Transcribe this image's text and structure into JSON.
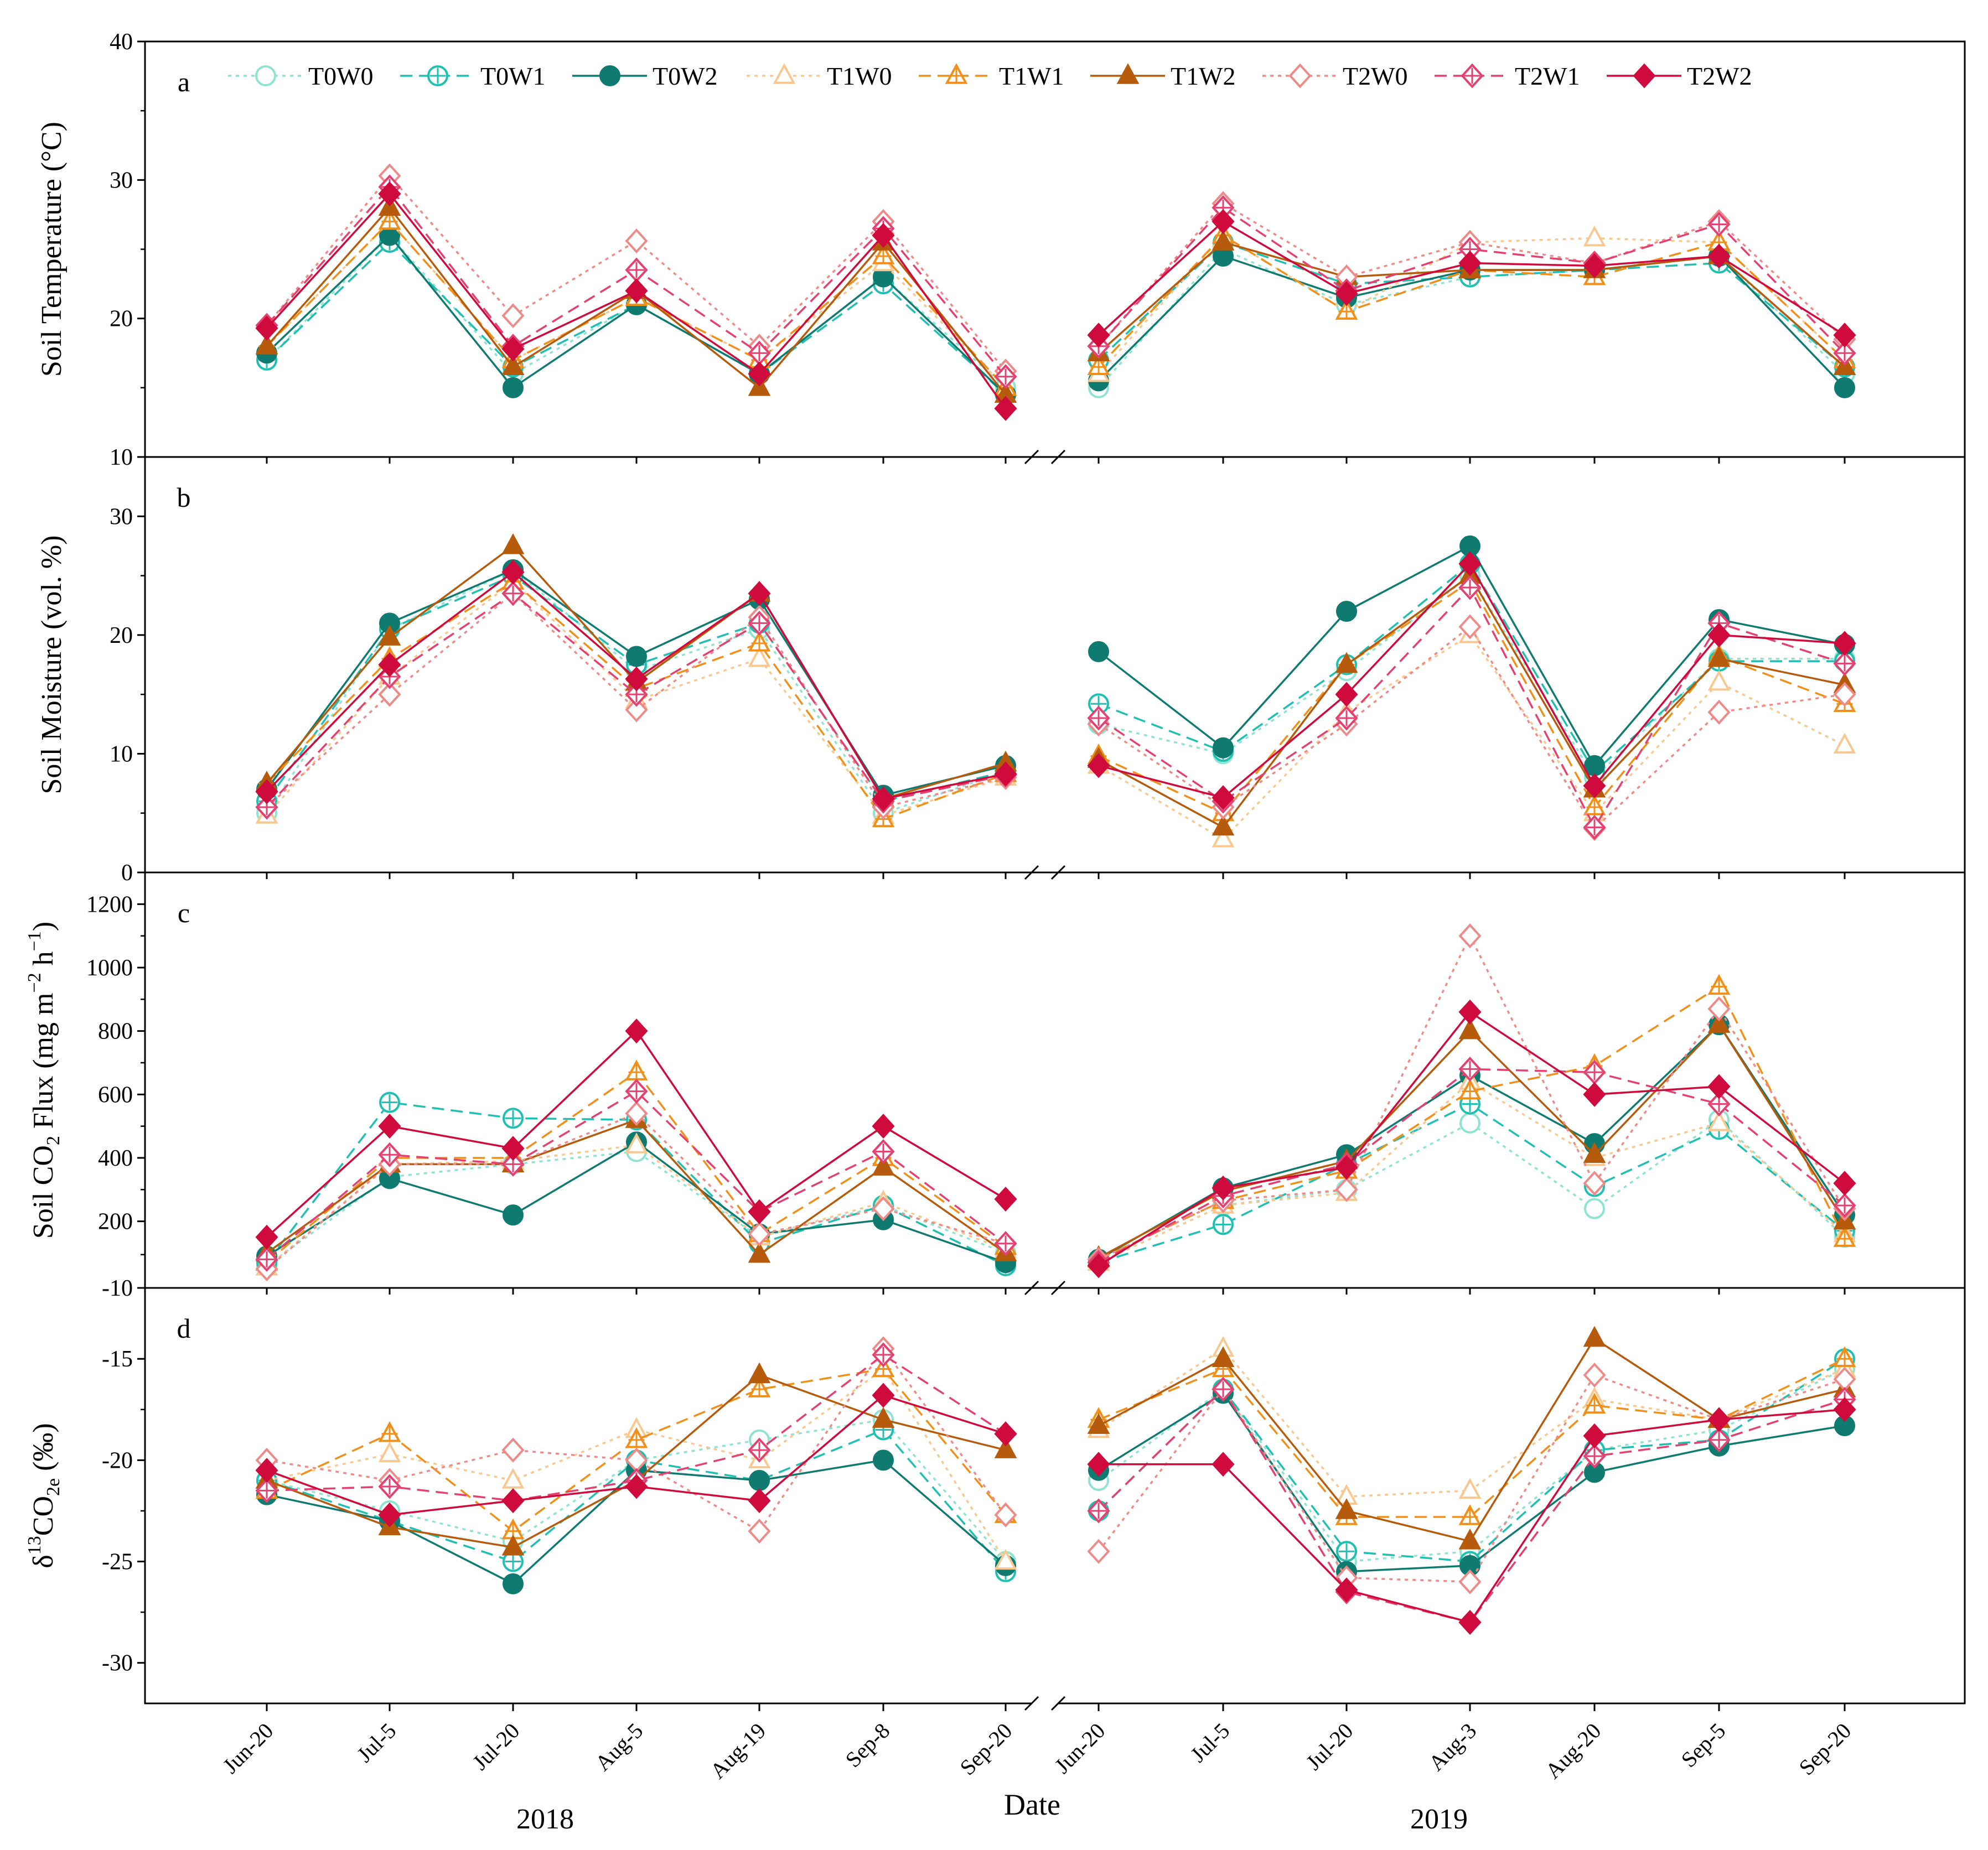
{
  "figure": {
    "xlabel": "Date",
    "year_labels": [
      "2018",
      "2019"
    ]
  },
  "chart_data": {
    "type": "line",
    "categories": [
      "Jun-20",
      "Jul-5",
      "Jul-20",
      "Aug-5",
      "Aug-19",
      "Sep-8",
      "Sep-20",
      "Jun-20",
      "Jul-5",
      "Jul-20",
      "Aug-3",
      "Aug-20",
      "Sep-5",
      "Sep-20"
    ],
    "legend_position": "top",
    "series_styles": [
      {
        "name": "T0W0",
        "color": "#8ee3d2",
        "marker": "circle-open",
        "dash": "dot"
      },
      {
        "name": "T0W1",
        "color": "#1fbfb2",
        "marker": "circle-plus",
        "dash": "dash"
      },
      {
        "name": "T0W2",
        "color": "#0e7a70",
        "marker": "circle-filled",
        "dash": "solid"
      },
      {
        "name": "T1W0",
        "color": "#f8c890",
        "marker": "triangle-open",
        "dash": "dot"
      },
      {
        "name": "T1W1",
        "color": "#f0901a",
        "marker": "triangle-plus",
        "dash": "dash"
      },
      {
        "name": "T1W2",
        "color": "#b65a0c",
        "marker": "triangle-filled",
        "dash": "solid"
      },
      {
        "name": "T2W0",
        "color": "#ee8a88",
        "marker": "diamond-open",
        "dash": "dot"
      },
      {
        "name": "T2W1",
        "color": "#e44070",
        "marker": "diamond-plus",
        "dash": "dash"
      },
      {
        "name": "T2W2",
        "color": "#cf0a3c",
        "marker": "diamond-filled",
        "dash": "solid"
      }
    ],
    "panels": [
      {
        "panel_label": "a",
        "ylabel": "Soil Temperature (°C)",
        "ylim": [
          10,
          40
        ],
        "yticks": [
          "10",
          "20",
          "30",
          "40"
        ],
        "series": [
          {
            "name": "T0W0",
            "values": [
              17.0,
              26.0,
              16.0,
              21.0,
              16.0,
              23.0,
              15.0,
              15.0,
              25.0,
              21.0,
              23.0,
              23.5,
              24.5,
              16.0
            ]
          },
          {
            "name": "T0W1",
            "values": [
              17.0,
              25.5,
              16.5,
              21.0,
              16.0,
              22.5,
              14.5,
              17.0,
              25.5,
              22.5,
              23.0,
              23.5,
              24.0,
              16.5
            ]
          },
          {
            "name": "T0W2",
            "values": [
              17.5,
              26.0,
              15.0,
              21.0,
              16.0,
              23.0,
              14.5,
              15.5,
              24.5,
              21.5,
              23.5,
              23.5,
              24.5,
              15.0
            ]
          },
          {
            "name": "T1W0",
            "values": [
              18.0,
              27.0,
              17.0,
              21.5,
              17.0,
              24.0,
              15.0,
              16.0,
              26.0,
              20.5,
              25.5,
              25.8,
              25.5,
              17.0
            ]
          },
          {
            "name": "T1W1",
            "values": [
              18.0,
              27.0,
              17.0,
              21.5,
              17.0,
              24.5,
              15.0,
              16.5,
              26.0,
              20.5,
              23.5,
              23.0,
              25.5,
              17.0
            ]
          },
          {
            "name": "T1W2",
            "values": [
              18.0,
              28.0,
              16.5,
              22.0,
              15.0,
              25.5,
              14.5,
              17.5,
              25.5,
              23.0,
              23.5,
              23.5,
              24.5,
              16.5
            ]
          },
          {
            "name": "T2W0",
            "values": [
              19.5,
              30.3,
              20.2,
              25.6,
              18.0,
              27.0,
              16.2,
              18.0,
              28.3,
              23.0,
              25.5,
              24.0,
              27.0,
              18.5
            ]
          },
          {
            "name": "T2W1",
            "values": [
              19.5,
              29.5,
              18.0,
              23.5,
              17.5,
              26.5,
              15.8,
              18.0,
              28.0,
              22.0,
              25.0,
              24.0,
              26.8,
              17.5
            ]
          },
          {
            "name": "T2W2",
            "values": [
              19.3,
              29.0,
              17.8,
              22.0,
              16.0,
              26.0,
              13.5,
              18.8,
              27.0,
              21.8,
              24.0,
              23.8,
              24.5,
              18.8
            ]
          }
        ]
      },
      {
        "panel_label": "b",
        "ylabel": "Soil Moisture (vol. %)",
        "ylim": [
          0,
          35
        ],
        "yticks": [
          "0",
          "10",
          "20",
          "30"
        ],
        "series": [
          {
            "name": "T0W0",
            "values": [
              5.0,
              20.5,
              25.5,
              17.0,
              20.5,
              5.0,
              8.5,
              12.5,
              10.0,
              17.0,
              25.0,
              8.0,
              18.0,
              18.0
            ]
          },
          {
            "name": "T0W1",
            "values": [
              6.0,
              20.5,
              25.0,
              17.5,
              21.0,
              6.0,
              8.5,
              14.2,
              10.2,
              17.5,
              26.0,
              8.5,
              17.8,
              17.8
            ]
          },
          {
            "name": "T0W2",
            "values": [
              7.0,
              21.0,
              25.5,
              18.2,
              23.0,
              6.5,
              9.0,
              18.6,
              10.5,
              22.0,
              27.5,
              9.0,
              21.3,
              19.2
            ]
          },
          {
            "name": "T1W0",
            "values": [
              4.8,
              16.5,
              24.5,
              14.5,
              18.0,
              4.8,
              8.0,
              9.0,
              2.8,
              13.5,
              20.0,
              5.0,
              16.0,
              10.7
            ]
          },
          {
            "name": "T1W1",
            "values": [
              7.5,
              18.0,
              24.5,
              15.5,
              19.3,
              4.5,
              8.3,
              9.8,
              5.0,
              17.5,
              24.5,
              5.5,
              18.2,
              14.2
            ]
          },
          {
            "name": "T1W2",
            "values": [
              7.5,
              19.8,
              27.5,
              16.0,
              23.5,
              6.2,
              9.2,
              9.5,
              3.8,
              17.5,
              25.0,
              7.0,
              18.0,
              15.8
            ]
          },
          {
            "name": "T2W0",
            "values": [
              5.5,
              15.0,
              23.5,
              13.7,
              21.5,
              5.5,
              8.0,
              12.5,
              5.5,
              12.5,
              20.7,
              3.7,
              13.5,
              15.0
            ]
          },
          {
            "name": "T2W1",
            "values": [
              5.5,
              16.5,
              23.5,
              15.0,
              21.0,
              6.0,
              8.2,
              13.0,
              6.0,
              13.0,
              24.0,
              3.8,
              21.0,
              17.6
            ]
          },
          {
            "name": "T2W2",
            "values": [
              6.8,
              17.5,
              25.3,
              16.3,
              23.5,
              6.2,
              8.3,
              9.0,
              6.3,
              15.0,
              26.0,
              7.3,
              20.0,
              19.3
            ]
          }
        ]
      },
      {
        "panel_label": "c",
        "ylabel": "Soil CO2 Flux (mg m-2 h-1)",
        "ylim": [
          -10,
          1300
        ],
        "yticks": [
          "-10",
          "200",
          "400",
          "600",
          "800",
          "1000",
          "1200"
        ],
        "series": [
          {
            "name": "T0W0",
            "values": [
              60,
              340,
              380,
              420,
              150,
              250,
              100,
              70,
              250,
              300,
              510,
              240,
              520,
              150
            ]
          },
          {
            "name": "T0W1",
            "values": [
              70,
              575,
              525,
              520,
              130,
              250,
              60,
              70,
              190,
              380,
              570,
              310,
              490,
              170
            ]
          },
          {
            "name": "T0W2",
            "values": [
              90,
              335,
              220,
              450,
              160,
              205,
              70,
              80,
              305,
              410,
              660,
              445,
              820,
              220
            ]
          },
          {
            "name": "T1W0",
            "values": [
              55,
              380,
              390,
              440,
              150,
              260,
              110,
              70,
              250,
              290,
              640,
              400,
              510,
              160
            ]
          },
          {
            "name": "T1W1",
            "values": [
              70,
              400,
              400,
              670,
              160,
              400,
              120,
              80,
              265,
              360,
              610,
              690,
              940,
              145
            ]
          },
          {
            "name": "T1W2",
            "values": [
              100,
              380,
              380,
              520,
              95,
              370,
              100,
              85,
              295,
              390,
              800,
              410,
              820,
              200
            ]
          },
          {
            "name": "T2W0",
            "values": [
              50,
              380,
              380,
              540,
              160,
              240,
              130,
              80,
              265,
              300,
              1100,
              320,
              870,
              240
            ]
          },
          {
            "name": "T2W1",
            "values": [
              80,
              410,
              380,
              610,
              230,
              420,
              130,
              70,
              280,
              380,
              680,
              670,
              570,
              250
            ]
          },
          {
            "name": "T2W2",
            "values": [
              150,
              500,
              430,
              800,
              230,
              500,
              270,
              60,
              305,
              370,
              860,
              600,
              625,
              320
            ]
          }
        ]
      },
      {
        "panel_label": "d",
        "ylabel": "δ13CO2e (‰)",
        "ylim": [
          -32,
          -11.5
        ],
        "yticks": [
          "-30",
          "-25",
          "-20",
          "-15"
        ],
        "series": [
          {
            "name": "T0W0",
            "values": [
              -21.0,
              -22.5,
              -24.0,
              -20.0,
              -19.0,
              -18.0,
              -25.0,
              -21.0,
              -16.5,
              -25.0,
              -24.5,
              -19.5,
              -18.5,
              -15.5
            ]
          },
          {
            "name": "T0W1",
            "values": [
              -21.0,
              -23.0,
              -25.0,
              -20.0,
              -21.0,
              -18.5,
              -25.5,
              -22.5,
              -16.5,
              -24.5,
              -25.0,
              -19.5,
              -19.0,
              -15.0
            ]
          },
          {
            "name": "T0W2",
            "values": [
              -21.7,
              -23.0,
              -26.1,
              -20.5,
              -21.0,
              -20.0,
              -25.2,
              -20.5,
              -16.7,
              -25.5,
              -25.2,
              -20.6,
              -19.3,
              -18.3
            ]
          },
          {
            "name": "T1W0",
            "values": [
              -21.0,
              -19.7,
              -21.0,
              -18.5,
              -20.0,
              -15.5,
              -25.0,
              -18.5,
              -14.5,
              -21.8,
              -21.5,
              -17.0,
              -18.0,
              -15.5
            ]
          },
          {
            "name": "T1W1",
            "values": [
              -21.5,
              -18.7,
              -23.5,
              -19.0,
              -16.5,
              -15.5,
              -22.7,
              -18.0,
              -15.5,
              -22.8,
              -22.8,
              -17.3,
              -18.0,
              -15.0
            ]
          },
          {
            "name": "T1W2",
            "values": [
              -21.0,
              -23.3,
              -24.3,
              -21.0,
              -15.8,
              -18.0,
              -19.5,
              -18.3,
              -15.0,
              -22.5,
              -24.0,
              -14.0,
              -18.0,
              -16.5
            ]
          },
          {
            "name": "T2W0",
            "values": [
              -20.0,
              -21.0,
              -19.5,
              -20.0,
              -23.5,
              -14.5,
              -22.7,
              -24.5,
              -16.5,
              -25.8,
              -26.0,
              -15.8,
              -18.0,
              -16.0
            ]
          },
          {
            "name": "T2W1",
            "values": [
              -21.5,
              -21.3,
              -22.0,
              -21.0,
              -19.5,
              -14.8,
              -18.7,
              -22.5,
              -16.5,
              -26.5,
              -28.0,
              -19.8,
              -19.0,
              -17.0
            ]
          },
          {
            "name": "T2W2",
            "values": [
              -20.5,
              -22.7,
              -22.0,
              -21.3,
              -22.0,
              -16.8,
              -18.7,
              -20.2,
              -20.2,
              -26.4,
              -28.0,
              -18.8,
              -18.0,
              -17.5
            ]
          }
        ]
      }
    ]
  }
}
